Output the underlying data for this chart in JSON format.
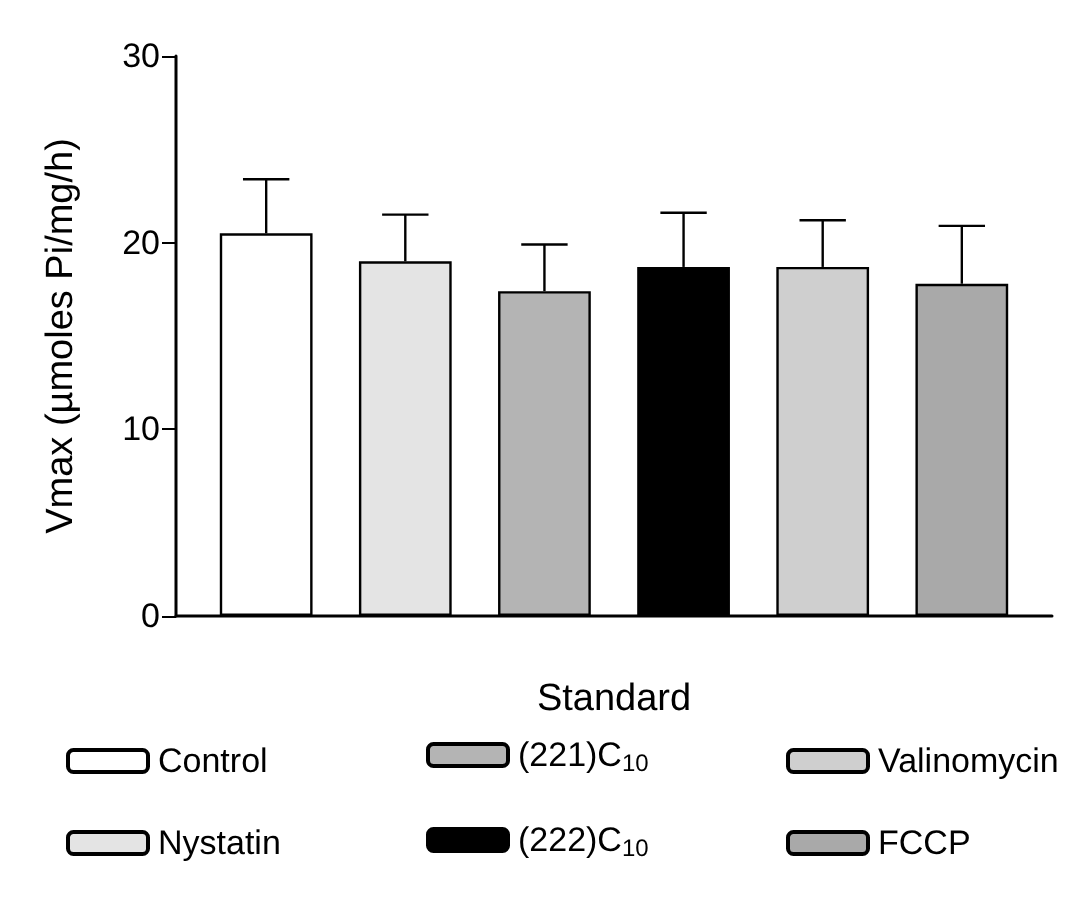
{
  "chart_data": {
    "type": "bar",
    "ylabel": "Vmax (µmoles Pi/mg/h)",
    "xlabel": "Standard",
    "categories": [
      null
    ],
    "ylim": [
      0,
      30
    ],
    "yticks": [
      0,
      10,
      20,
      30
    ],
    "grid": false,
    "legend": "bottom",
    "series": [
      {
        "name": "Control",
        "color": "#ffffff",
        "values": [
          20.5
        ],
        "errors": [
          [
            20.5,
            23.4
          ]
        ]
      },
      {
        "name": "Nystatin",
        "color": "#e4e4e4",
        "values": [
          19.0
        ],
        "errors": [
          [
            19.0,
            21.5
          ]
        ]
      },
      {
        "name": "(221)C$_{10}$",
        "color": "#b4b4b4",
        "values": [
          17.4
        ],
        "errors": [
          [
            17.4,
            19.9
          ]
        ]
      },
      {
        "name": "(222)C$_{10}$",
        "color": "#000000",
        "values": [
          18.7
        ],
        "errors": [
          [
            18.7,
            21.6
          ]
        ]
      },
      {
        "name": "Valinomycin",
        "color": "#cfcfcf",
        "values": [
          18.7
        ],
        "errors": [
          [
            18.7,
            21.2
          ]
        ]
      },
      {
        "name": "FCCP",
        "color": "#a9a9a9",
        "values": [
          17.8
        ],
        "errors": [
          [
            17.8,
            20.9
          ]
        ]
      }
    ]
  }
}
